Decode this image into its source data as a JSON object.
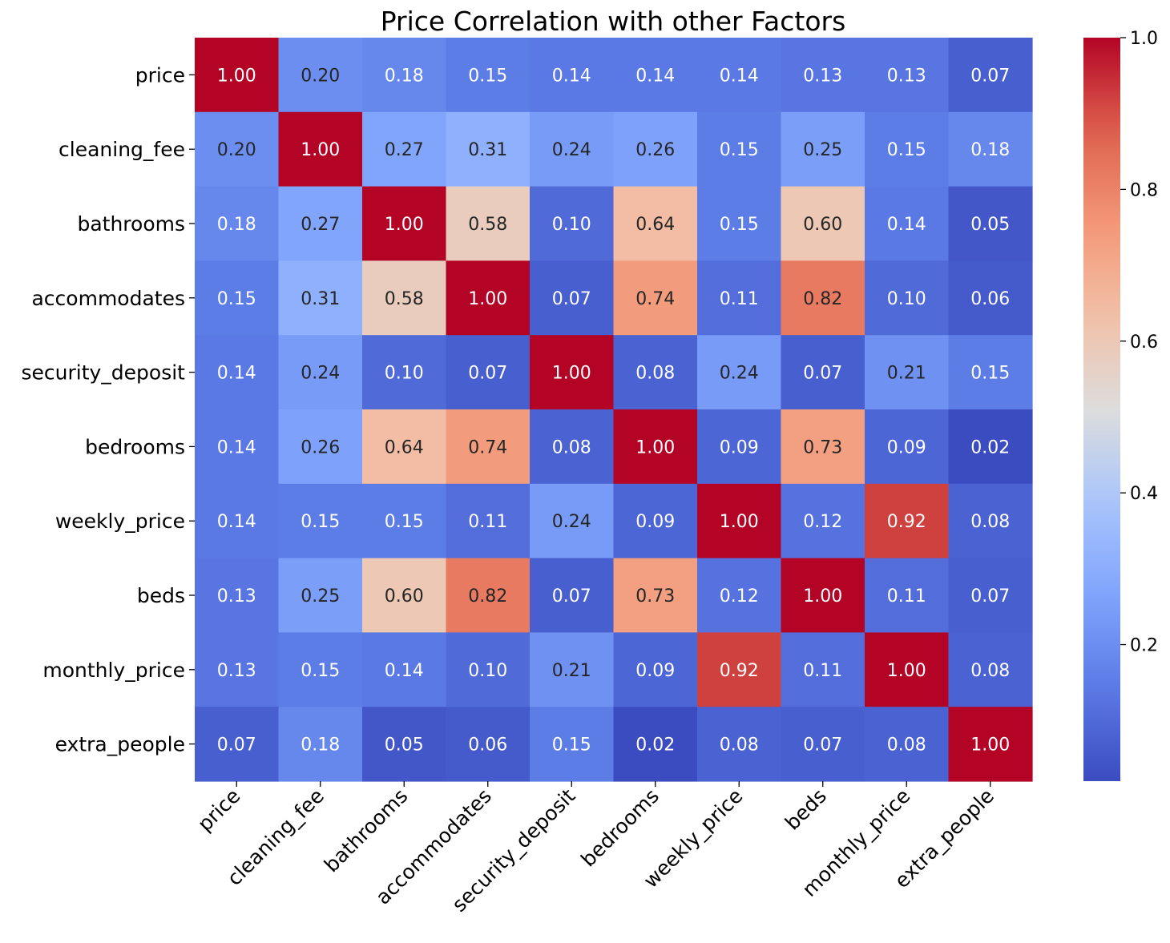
{
  "chart_data": {
    "type": "heatmap",
    "title": "Price Correlation with other Factors",
    "xlabel": "",
    "ylabel": "",
    "row_labels": [
      "price",
      "cleaning_fee",
      "bathrooms",
      "accommodates",
      "security_deposit",
      "bedrooms",
      "weekly_price",
      "beds",
      "monthly_price",
      "extra_people"
    ],
    "col_labels": [
      "price",
      "cleaning_fee",
      "bathrooms",
      "accommodates",
      "security_deposit",
      "bedrooms",
      "weekly_price",
      "beds",
      "monthly_price",
      "extra_people"
    ],
    "values": [
      [
        1.0,
        0.2,
        0.18,
        0.15,
        0.14,
        0.14,
        0.14,
        0.13,
        0.13,
        0.07
      ],
      [
        0.2,
        1.0,
        0.27,
        0.31,
        0.24,
        0.26,
        0.15,
        0.25,
        0.15,
        0.18
      ],
      [
        0.18,
        0.27,
        1.0,
        0.58,
        0.1,
        0.64,
        0.15,
        0.6,
        0.14,
        0.05
      ],
      [
        0.15,
        0.31,
        0.58,
        1.0,
        0.07,
        0.74,
        0.11,
        0.82,
        0.1,
        0.06
      ],
      [
        0.14,
        0.24,
        0.1,
        0.07,
        1.0,
        0.08,
        0.24,
        0.07,
        0.21,
        0.15
      ],
      [
        0.14,
        0.26,
        0.64,
        0.74,
        0.08,
        1.0,
        0.09,
        0.73,
        0.09,
        0.02
      ],
      [
        0.14,
        0.15,
        0.15,
        0.11,
        0.24,
        0.09,
        1.0,
        0.12,
        0.92,
        0.08
      ],
      [
        0.13,
        0.25,
        0.6,
        0.82,
        0.07,
        0.73,
        0.12,
        1.0,
        0.11,
        0.07
      ],
      [
        0.13,
        0.15,
        0.14,
        0.1,
        0.21,
        0.09,
        0.92,
        0.11,
        1.0,
        0.08
      ],
      [
        0.07,
        0.18,
        0.05,
        0.06,
        0.15,
        0.02,
        0.08,
        0.07,
        0.08,
        1.0
      ]
    ],
    "colormap": "coolwarm",
    "vmin": 0.02,
    "vmax": 1.0,
    "colorbar_ticks": [
      0.2,
      0.4,
      0.6,
      0.8,
      1.0
    ],
    "colorbar_tick_labels": [
      "0.2",
      "0.4",
      "0.6",
      "0.8",
      "1.0"
    ],
    "grid": false
  }
}
